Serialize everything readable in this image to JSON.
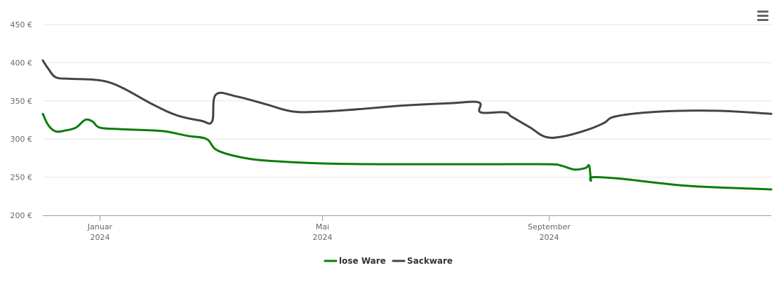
{
  "chart_data": {
    "type": "line",
    "title": "",
    "xlabel": "",
    "ylabel": "",
    "x_range": [
      "2023-12-01",
      "2024-12-31"
    ],
    "ylim": [
      200,
      450
    ],
    "y_ticks": [
      200,
      250,
      300,
      350,
      400,
      450
    ],
    "y_tick_suffix": " €",
    "x_ticks": [
      {
        "date": "2024-01-01",
        "month": "Januar",
        "year": "2024"
      },
      {
        "date": "2024-05-01",
        "month": "Mai",
        "year": "2024"
      },
      {
        "date": "2024-09-01",
        "month": "September",
        "year": "2024"
      }
    ],
    "grid": "horizontal",
    "legend_position": "bottom-center",
    "series": [
      {
        "name": "lose Ware",
        "color": "#0a7d0a",
        "points": [
          [
            "2023-12-01",
            333
          ],
          [
            "2023-12-04",
            318
          ],
          [
            "2023-12-08",
            310
          ],
          [
            "2023-12-13",
            311
          ],
          [
            "2023-12-19",
            315
          ],
          [
            "2023-12-24",
            325
          ],
          [
            "2023-12-28",
            323
          ],
          [
            "2024-01-01",
            315
          ],
          [
            "2024-01-12",
            313
          ],
          [
            "2024-02-01",
            311
          ],
          [
            "2024-02-08",
            309
          ],
          [
            "2024-02-18",
            304
          ],
          [
            "2024-02-28",
            300
          ],
          [
            "2024-03-05",
            285
          ],
          [
            "2024-03-20",
            275
          ],
          [
            "2024-04-05",
            271
          ],
          [
            "2024-05-01",
            268
          ],
          [
            "2024-06-01",
            267
          ],
          [
            "2024-07-01",
            267
          ],
          [
            "2024-08-01",
            267
          ],
          [
            "2024-09-01",
            267
          ],
          [
            "2024-09-08",
            265
          ],
          [
            "2024-09-15",
            260
          ],
          [
            "2024-09-21",
            262
          ],
          [
            "2024-09-23",
            265
          ],
          [
            "2024-09-24",
            246
          ],
          [
            "2024-09-25",
            250
          ],
          [
            "2024-10-10",
            248
          ],
          [
            "2024-11-01",
            242
          ],
          [
            "2024-11-20",
            238
          ],
          [
            "2024-12-31",
            234
          ]
        ]
      },
      {
        "name": "Sackware",
        "color": "#434348",
        "points": [
          [
            "2023-12-01",
            403
          ],
          [
            "2023-12-04",
            392
          ],
          [
            "2023-12-08",
            381
          ],
          [
            "2023-12-15",
            379
          ],
          [
            "2023-12-27",
            378
          ],
          [
            "2024-01-05",
            375
          ],
          [
            "2024-01-15",
            365
          ],
          [
            "2024-01-30",
            345
          ],
          [
            "2024-02-12",
            331
          ],
          [
            "2024-02-25",
            324
          ],
          [
            "2024-03-02",
            323
          ],
          [
            "2024-03-04",
            358
          ],
          [
            "2024-03-15",
            356
          ],
          [
            "2024-04-01",
            345
          ],
          [
            "2024-04-15",
            336
          ],
          [
            "2024-05-01",
            336
          ],
          [
            "2024-05-20",
            339
          ],
          [
            "2024-06-15",
            344
          ],
          [
            "2024-07-10",
            347
          ],
          [
            "2024-07-25",
            348
          ],
          [
            "2024-07-26",
            335
          ],
          [
            "2024-08-08",
            335
          ],
          [
            "2024-08-12",
            329
          ],
          [
            "2024-08-22",
            315
          ],
          [
            "2024-08-30",
            303
          ],
          [
            "2024-09-08",
            303
          ],
          [
            "2024-09-22",
            312
          ],
          [
            "2024-10-01",
            321
          ],
          [
            "2024-10-08",
            330
          ],
          [
            "2024-11-01",
            336
          ],
          [
            "2024-12-01",
            337
          ],
          [
            "2024-12-31",
            333
          ]
        ]
      }
    ]
  }
}
